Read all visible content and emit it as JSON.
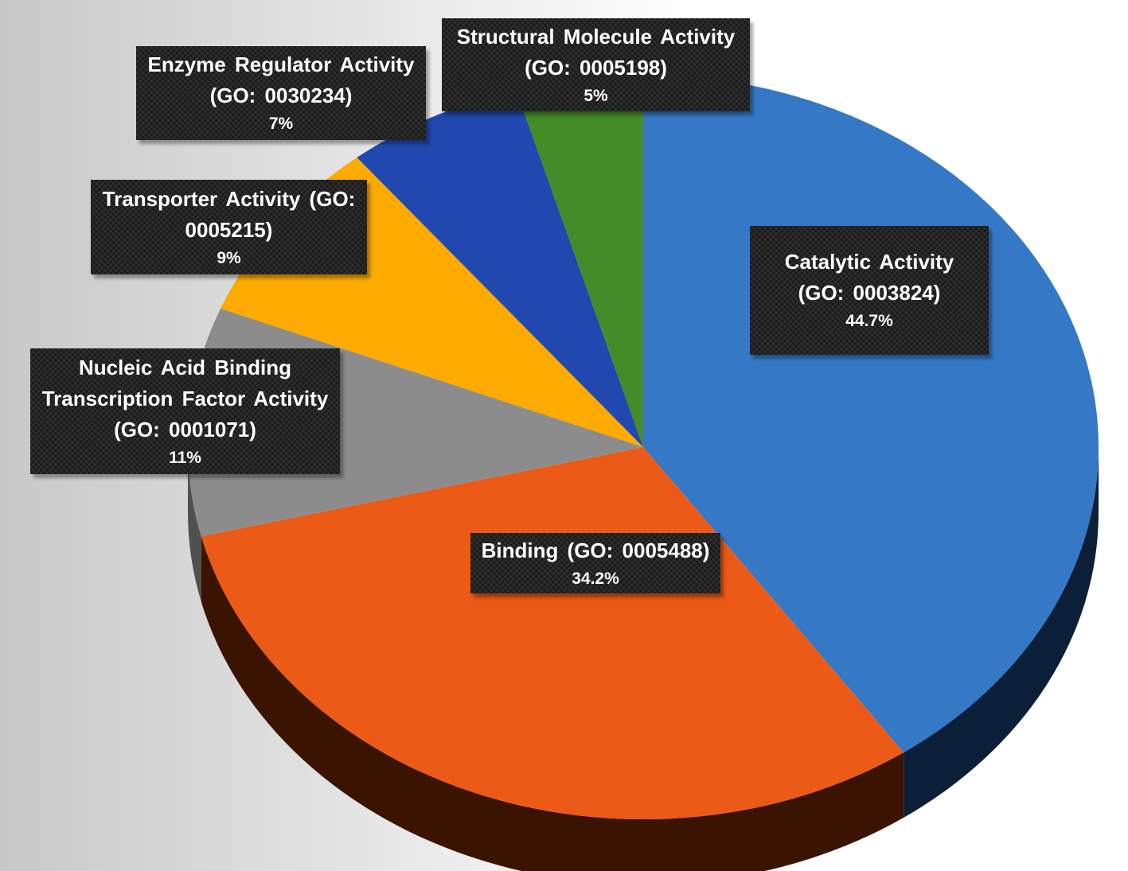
{
  "chart_data": {
    "type": "pie",
    "title": "",
    "slices": [
      {
        "label_lines": [
          "Catalytic Activity",
          "(GO: 0003824)"
        ],
        "percent_label": "44.7%",
        "value": 44.7,
        "color": "#3578c6",
        "side_color": "#0b2038"
      },
      {
        "label_lines": [
          "Binding (GO: 0005488)"
        ],
        "percent_label": "34.2%",
        "value": 34.2,
        "color": "#eb5a16",
        "side_color": "#3a1400"
      },
      {
        "label_lines": [
          "Nucleic Acid Binding",
          "Transcription Factor Activity",
          "(GO: 0001071)"
        ],
        "percent_label": "11%",
        "value": 11,
        "color": "#8c8c8c",
        "side_color": "#505050"
      },
      {
        "label_lines": [
          "Transporter Activity (GO:",
          "0005215)"
        ],
        "percent_label": "9%",
        "value": 9,
        "color": "#fdaa01",
        "side_color": "#7a5200"
      },
      {
        "label_lines": [
          "Enzyme Regulator Activity",
          "(GO: 0030234)"
        ],
        "percent_label": "7%",
        "value": 7,
        "color": "#2148ae",
        "side_color": "#0e1e4a"
      },
      {
        "label_lines": [
          "Structural Molecule Activity",
          "(GO: 0005198)"
        ],
        "percent_label": "5%",
        "value": 5,
        "color": "#458b27",
        "side_color": "#1f3f12"
      }
    ]
  }
}
